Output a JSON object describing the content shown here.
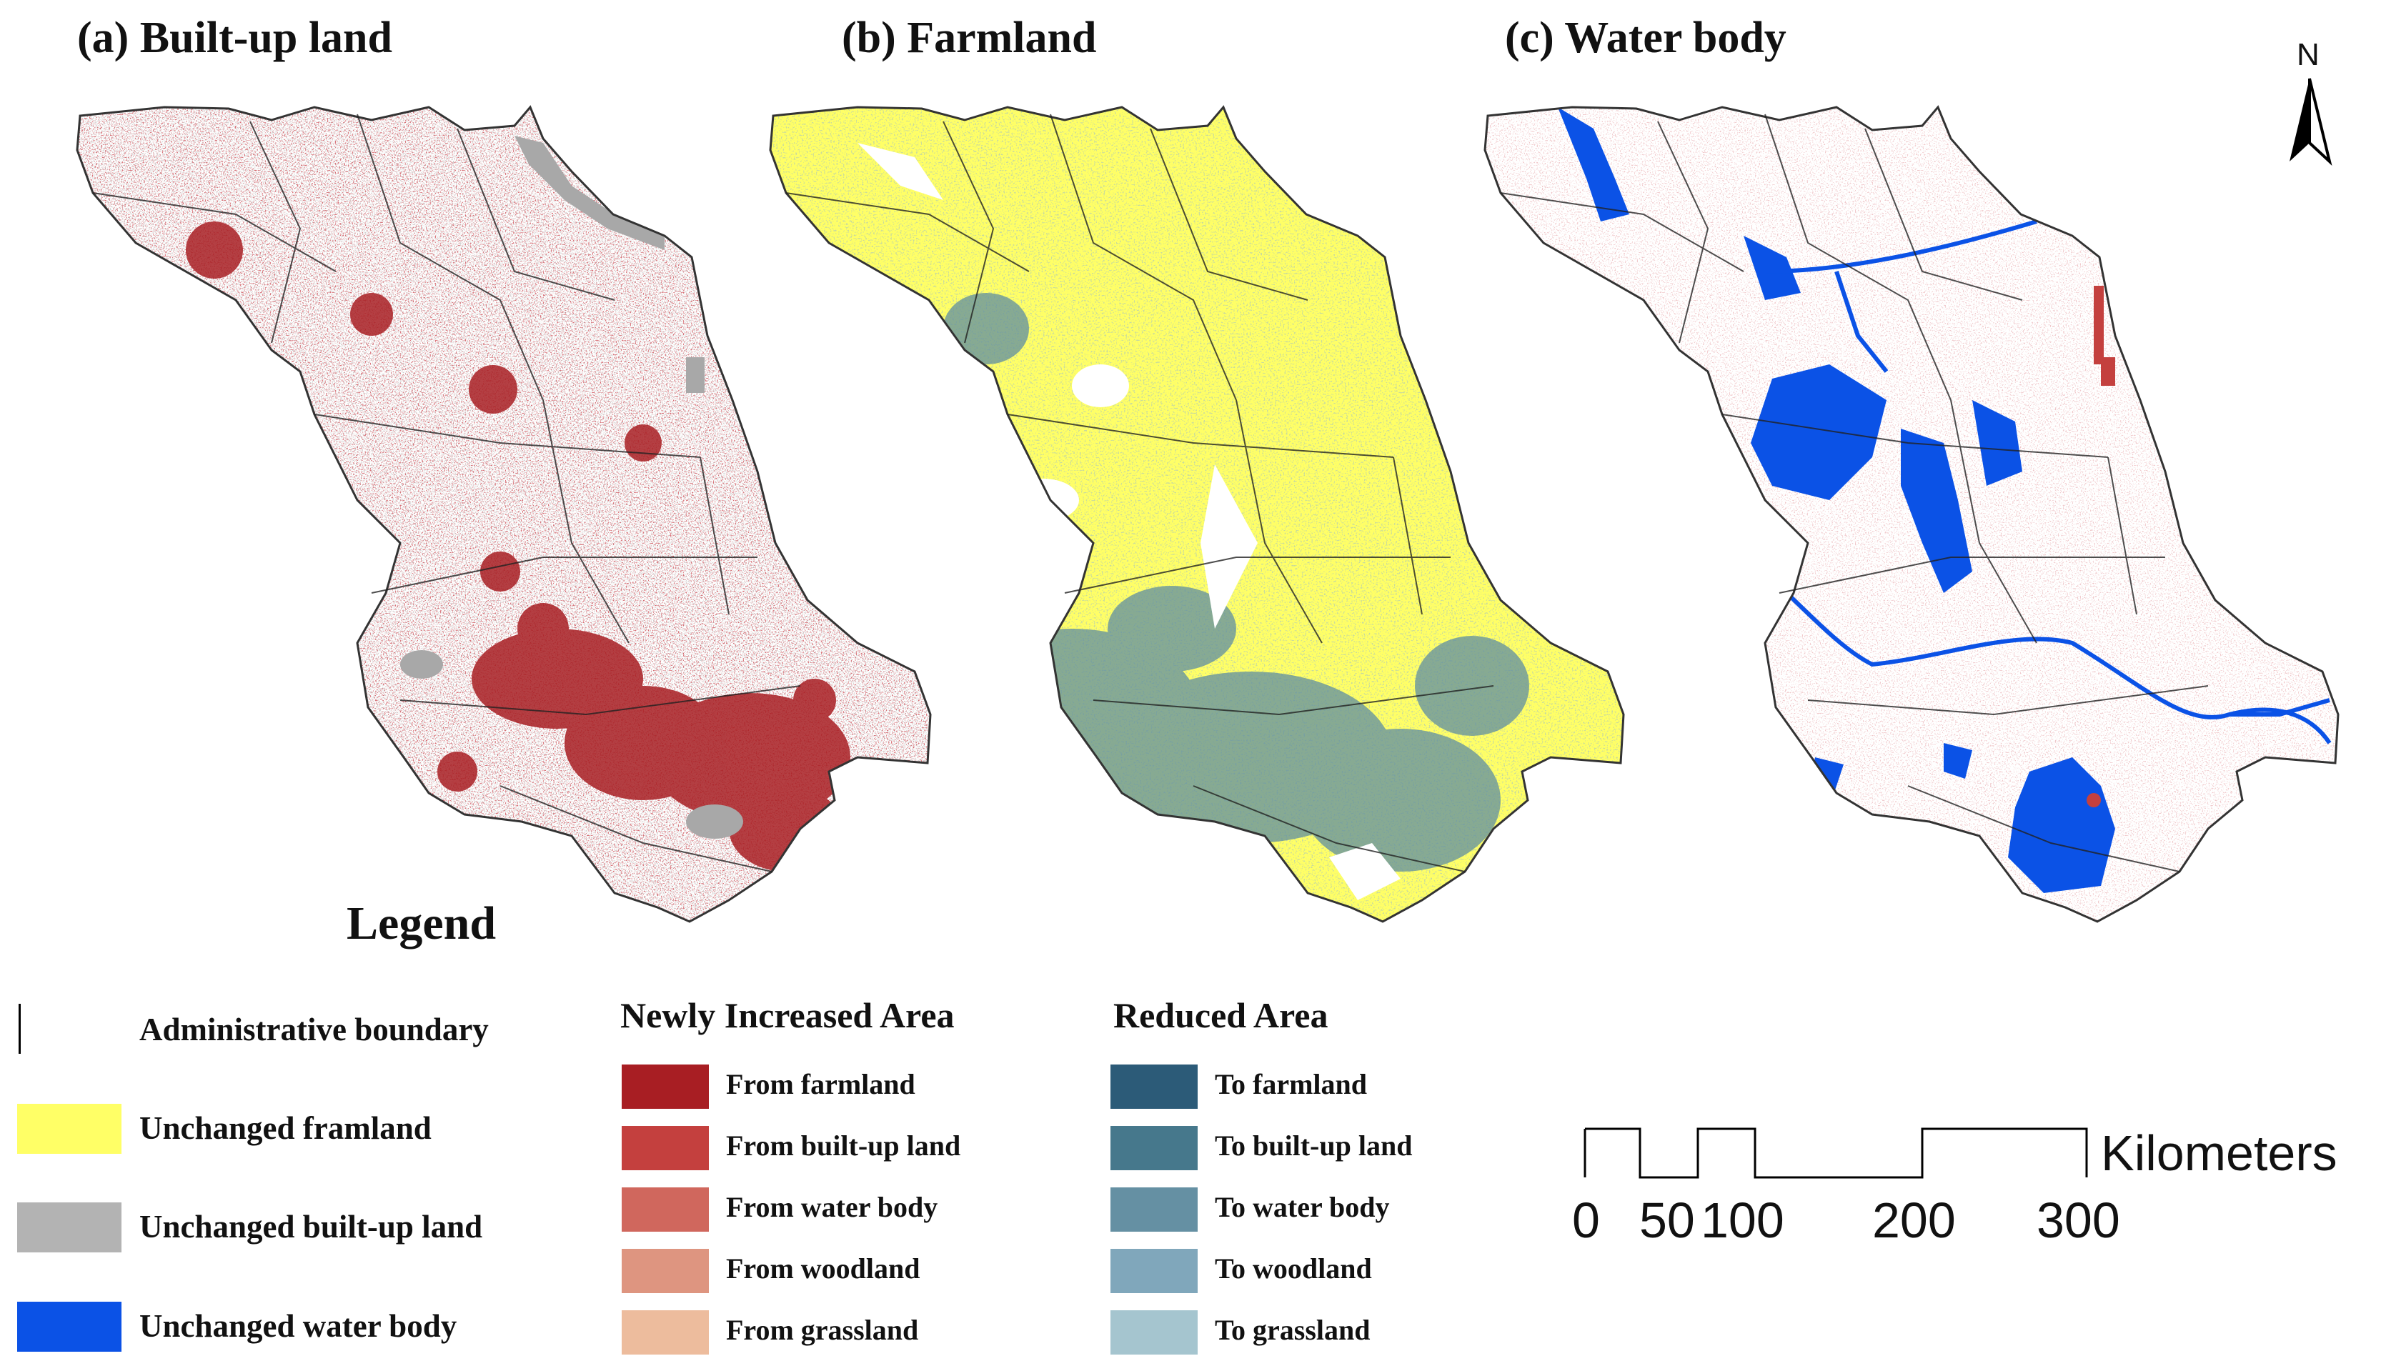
{
  "panels": {
    "a_title": "(a) Built-up land",
    "b_title": "(b) Farmland",
    "c_title": "(c) Water body"
  },
  "north_arrow": {
    "label": "N",
    "icon": "north-arrow-icon"
  },
  "legend": {
    "title": "Legend",
    "base_items": [
      {
        "label": "Administrative boundary",
        "symbol": "line",
        "color": "#000000"
      },
      {
        "label": "Unchanged framland",
        "color": "#ffff66"
      },
      {
        "label": "Unchanged built-up land",
        "color": "#b3b3b3"
      },
      {
        "label": "Unchanged water body",
        "color": "#0b52e6"
      }
    ],
    "newly_increased": {
      "title": "Newly Increased Area",
      "items": [
        {
          "label": "From farmland",
          "color": "#a81e23"
        },
        {
          "label": "From built-up land",
          "color": "#c4403e"
        },
        {
          "label": "From water body",
          "color": "#d0675d"
        },
        {
          "label": "From woodland",
          "color": "#de9580"
        },
        {
          "label": "From grassland",
          "color": "#edbc9d"
        }
      ]
    },
    "reduced": {
      "title": "Reduced Area",
      "items": [
        {
          "label": "To farmland",
          "color": "#2c5b78"
        },
        {
          "label": "To built-up land",
          "color": "#46788c"
        },
        {
          "label": "To water body",
          "color": "#6590a3"
        },
        {
          "label": "To woodland",
          "color": "#80a7bb"
        },
        {
          "label": "To grassland",
          "color": "#a5c5cf"
        }
      ]
    }
  },
  "scale_bar": {
    "unit": "Kilometers",
    "ticks": [
      "0",
      "50",
      "100",
      "200",
      "300"
    ]
  }
}
